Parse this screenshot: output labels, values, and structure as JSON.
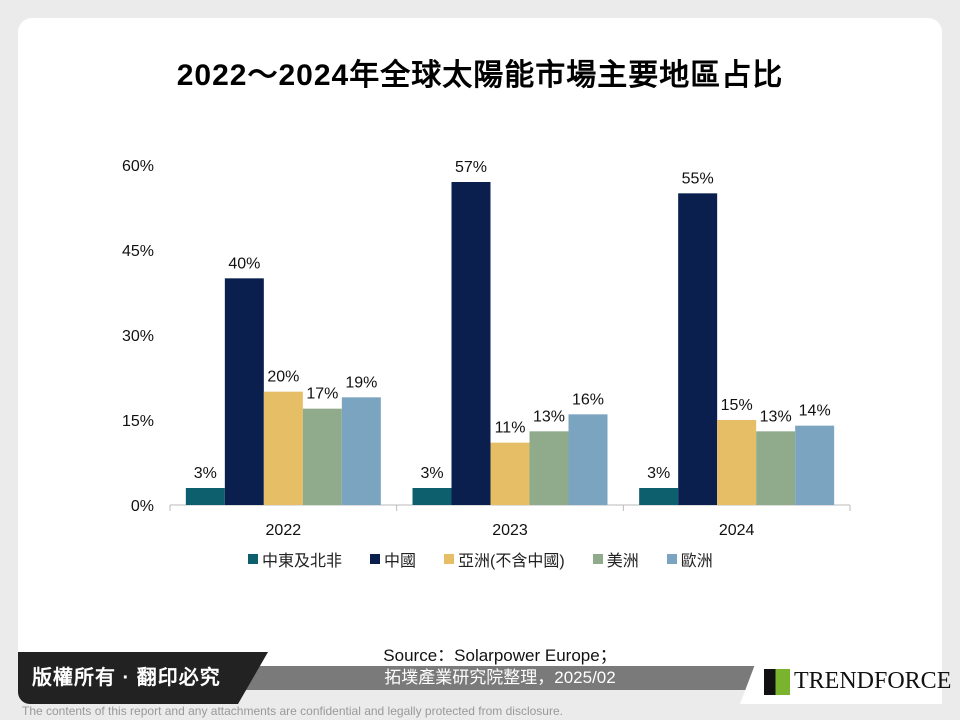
{
  "chart_data": {
    "type": "bar",
    "title": "2022～2024年全球太陽能市場主要地區占比",
    "categories": [
      "2022",
      "2023",
      "2024"
    ],
    "ylim": [
      0,
      60
    ],
    "yticks": [
      0,
      15,
      30,
      45,
      60
    ],
    "ytick_labels": [
      "0%",
      "15%",
      "30%",
      "45%",
      "60%"
    ],
    "grid": false,
    "legend_position": "bottom",
    "series": [
      {
        "name": "中東及北非",
        "color": "#0e5f6e",
        "values": [
          3,
          3,
          3
        ]
      },
      {
        "name": "中國",
        "color": "#0b1f4e",
        "values": [
          40,
          57,
          55
        ]
      },
      {
        "name": "亞洲(不含中國)",
        "color": "#e6be66",
        "values": [
          20,
          11,
          15
        ]
      },
      {
        "name": "美洲",
        "color": "#8fab8c",
        "values": [
          17,
          13,
          13
        ]
      },
      {
        "name": "歐洲",
        "color": "#7ba4c0",
        "values": [
          19,
          16,
          14
        ]
      }
    ]
  },
  "footer": {
    "copyright": "版權所有 · 翻印必究",
    "source_line1": "Source：Solarpower Europe；",
    "source_line2": "拓墣產業研究院整理，2025/02",
    "logo_text": "TRENDFORCE",
    "disclaimer": "The contents of this report and any attachments are confidential and legally protected from disclosure."
  }
}
